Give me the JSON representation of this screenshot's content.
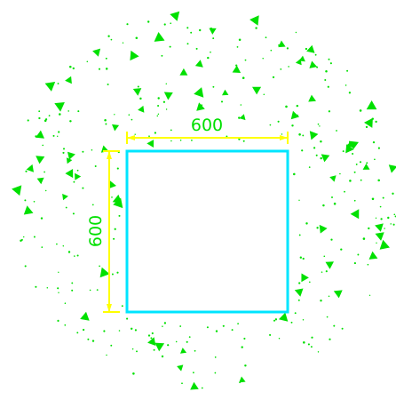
{
  "drawing": {
    "shape": "square",
    "dimensions": {
      "width_label": "600",
      "height_label": "600"
    },
    "colors": {
      "background": "#ffffff",
      "outline": "#00e5ff",
      "dimension_line": "#ffff00",
      "dimension_text": "#00e000",
      "hatch_pattern": "#00e000"
    },
    "pattern": "gravel-concrete-hatch"
  }
}
